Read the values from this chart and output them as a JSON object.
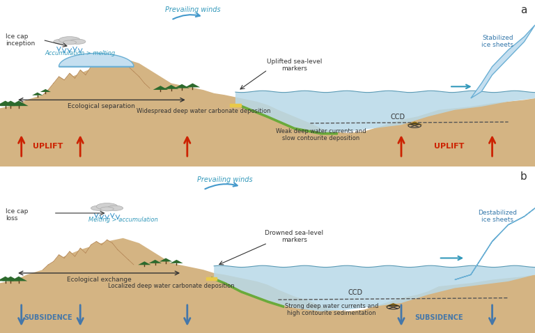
{
  "panel_a_label": "a",
  "panel_b_label": "b",
  "bg_color": "#f5f5f5",
  "sand_color": "#d4b483",
  "sand_dark": "#c9a96e",
  "water_color": "#b8d9e8",
  "water_edge": "#5a9ab5",
  "ice_color": "#c5dff0",
  "ice_edge": "#6aafd4",
  "green_stripe": "#6aaa3a",
  "yellow_stripe": "#e8c94a",
  "uplift_color": "#cc2200",
  "subsidence_color": "#4477aa",
  "text_color": "#333333",
  "dark_text": "#222222",
  "panel_border": "#888888",
  "ccd_color": "#555555",
  "brown_deposit": "#8B6914",
  "panel_a": {
    "title_label": "Ice cap\ninception",
    "wind_label": "Prevailing winds",
    "acc_label": "Accumulation > melting",
    "eco_label": "Ecological separation",
    "uplift_label": "UPLIFT",
    "sea_marker_label": "Uplifted sea-level\nmarkers",
    "water_label": "Widespread deep water carbonate deposition",
    "ccd_label": "CCD",
    "weak_label": "Weak deep water currents and\nslow contourite deposition",
    "ice_sheet_label": "Stabilized\nice sheets"
  },
  "panel_b": {
    "title_label": "Ice cap\nloss",
    "wind_label": "Prevailing winds",
    "melt_label": "Melting > accumulation",
    "eco_label": "Ecological exchange",
    "subsidence_label": "SUBSIDENCE",
    "sea_marker_label": "Drowned sea-level\nmarkers",
    "water_label": "Localized deep water carbonate deposition",
    "ccd_label": "CCD",
    "strong_label": "Strong deep water currents and\nhigh contourite sedimentation",
    "ice_sheet_label": "Destabilized\nice sheets"
  }
}
